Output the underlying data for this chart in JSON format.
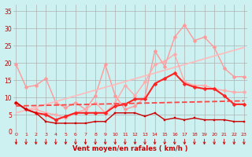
{
  "background_color": "#cdf0f0",
  "grid_color": "#b0b0b0",
  "x_labels": [
    "0",
    "1",
    "2",
    "3",
    "4",
    "5",
    "6",
    "7",
    "8",
    "9",
    "10",
    "11",
    "12",
    "13",
    "14",
    "15",
    "16",
    "17",
    "18",
    "19",
    "20",
    "21",
    "22",
    "23"
  ],
  "x_ticks": [
    0,
    1,
    2,
    3,
    4,
    5,
    6,
    7,
    8,
    9,
    10,
    11,
    12,
    13,
    14,
    15,
    16,
    17,
    18,
    19,
    20,
    21,
    22,
    23
  ],
  "xlabel_text": "Vent moyen/en rafales ( km/h )",
  "yticks": [
    0,
    5,
    10,
    15,
    20,
    25,
    30,
    35
  ],
  "ylim": [
    0,
    37
  ],
  "xlim": [
    -0.3,
    23.3
  ],
  "lines": [
    {
      "x": [
        0,
        1,
        2,
        3,
        4,
        5,
        6,
        7,
        8,
        9,
        10,
        11,
        12,
        13,
        14,
        15,
        16,
        17,
        18,
        19,
        20,
        21,
        22,
        23
      ],
      "y": [
        19.5,
        13.0,
        13.5,
        15.5,
        8.5,
        7.0,
        8.5,
        6.5,
        10.5,
        19.5,
        10.5,
        6.5,
        7.5,
        10.0,
        23.5,
        19.0,
        27.5,
        31.0,
        26.5,
        27.5,
        24.5,
        18.5,
        16.0,
        16.0
      ],
      "color": "#ff9999",
      "lw": 1.0,
      "marker": "D",
      "ms": 2.5
    },
    {
      "x": [
        0,
        23
      ],
      "y": [
        5.5,
        24.5
      ],
      "color": "#ffbbbb",
      "lw": 1.2,
      "marker": null,
      "ms": 0
    },
    {
      "x": [
        0,
        1,
        2,
        3,
        4,
        5,
        6,
        7,
        8,
        9,
        10,
        11,
        12,
        13,
        14,
        15,
        16,
        17,
        18,
        19,
        20,
        21,
        22,
        23
      ],
      "y": [
        8.5,
        6.5,
        6.5,
        5.5,
        5.0,
        4.0,
        5.5,
        6.5,
        8.5,
        5.5,
        8.5,
        13.5,
        10.5,
        14.5,
        19.5,
        20.5,
        22.5,
        14.5,
        13.5,
        13.5,
        12.5,
        12.0,
        11.5,
        11.5
      ],
      "color": "#ffaaaa",
      "lw": 1.0,
      "marker": "D",
      "ms": 2.5
    },
    {
      "x": [
        0,
        1,
        2,
        3,
        4,
        5,
        6,
        7,
        8,
        9,
        10,
        11,
        12,
        13,
        14,
        15,
        16,
        17,
        18,
        19,
        20,
        21,
        22,
        23
      ],
      "y": [
        8.5,
        6.5,
        5.5,
        5.0,
        3.5,
        4.5,
        5.5,
        5.5,
        5.5,
        5.5,
        7.5,
        8.0,
        9.5,
        9.5,
        14.0,
        15.5,
        17.0,
        14.0,
        13.0,
        12.5,
        12.5,
        10.5,
        8.0,
        8.0
      ],
      "color": "#ff2222",
      "lw": 1.5,
      "marker": "D",
      "ms": 2.5
    },
    {
      "x": [
        0,
        23
      ],
      "y": [
        7.5,
        9.0
      ],
      "color": "#ff4444",
      "lw": 1.3,
      "marker": null,
      "ms": 0,
      "ls": "--"
    },
    {
      "x": [
        0,
        1,
        2,
        3,
        4,
        5,
        6,
        7,
        8,
        9,
        10,
        11,
        12,
        13,
        14,
        15,
        16,
        17,
        18,
        19,
        20,
        21,
        22,
        23
      ],
      "y": [
        8.5,
        6.5,
        5.5,
        3.0,
        2.5,
        2.5,
        2.5,
        2.5,
        3.0,
        3.0,
        5.5,
        5.5,
        5.5,
        4.5,
        5.5,
        3.5,
        4.0,
        3.5,
        4.0,
        3.5,
        3.5,
        3.5,
        3.0,
        3.0
      ],
      "color": "#cc0000",
      "lw": 1.0,
      "marker": "s",
      "ms": 2.0
    }
  ],
  "arrow_color": "#cc0000",
  "tick_label_color": "#cc0000",
  "axis_label_color": "#cc0000"
}
